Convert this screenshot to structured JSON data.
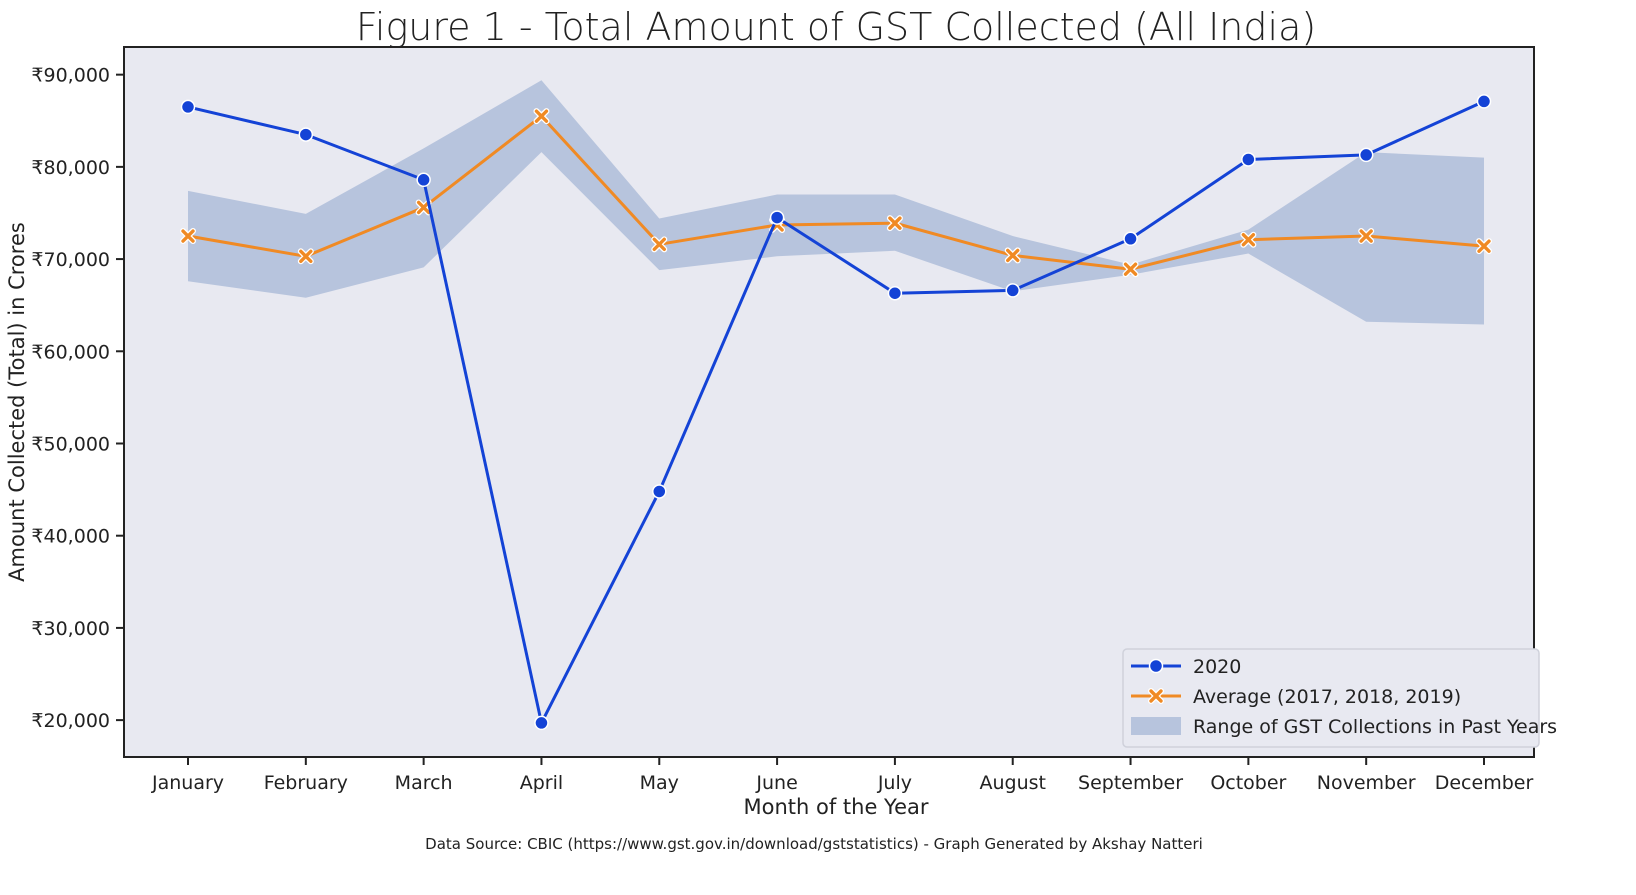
{
  "chart_data": {
    "type": "line",
    "title": "Figure 1 - Total Amount of GST Collected (All India)",
    "xlabel": "Month of the Year",
    "ylabel": "Amount Collected (Total) in Crores",
    "caption": "Data Source: CBIC (https://www.gst.gov.in/download/gststatistics) - Graph Generated by Akshay Natteri",
    "categories": [
      "January",
      "February",
      "March",
      "April",
      "May",
      "June",
      "July",
      "August",
      "September",
      "October",
      "November",
      "December"
    ],
    "ylim": [
      16000,
      93000
    ],
    "yticks": [
      20000,
      30000,
      40000,
      50000,
      60000,
      70000,
      80000,
      90000
    ],
    "ytick_labels": [
      "₹20,000",
      "₹30,000",
      "₹40,000",
      "₹50,000",
      "₹60,000",
      "₹70,000",
      "₹80,000",
      "₹90,000"
    ],
    "series": [
      {
        "name": "2020",
        "color": "#1443d6",
        "marker": "circle",
        "values": [
          86500,
          83500,
          78600,
          19700,
          44800,
          74500,
          66300,
          66600,
          72200,
          80800,
          81300,
          87100
        ]
      },
      {
        "name": "Average (2017, 2018, 2019)",
        "color": "#f08a24",
        "marker": "x",
        "values": [
          72500,
          70300,
          75600,
          85500,
          71600,
          73700,
          73900,
          70400,
          68900,
          72100,
          72500,
          71400
        ]
      }
    ],
    "band": {
      "name": "Range of GST Collections in Past Years",
      "color": "#b7c4dd",
      "lower": [
        67600,
        65800,
        69100,
        81600,
        68800,
        70300,
        70900,
        66500,
        68300,
        70600,
        63200,
        62900
      ],
      "upper": [
        77400,
        74900,
        82000,
        89400,
        74400,
        77000,
        77000,
        72500,
        69400,
        73200,
        81600,
        81000
      ]
    },
    "legend_position": "bottom-right",
    "grid": false,
    "background": "#e8e9f1"
  }
}
